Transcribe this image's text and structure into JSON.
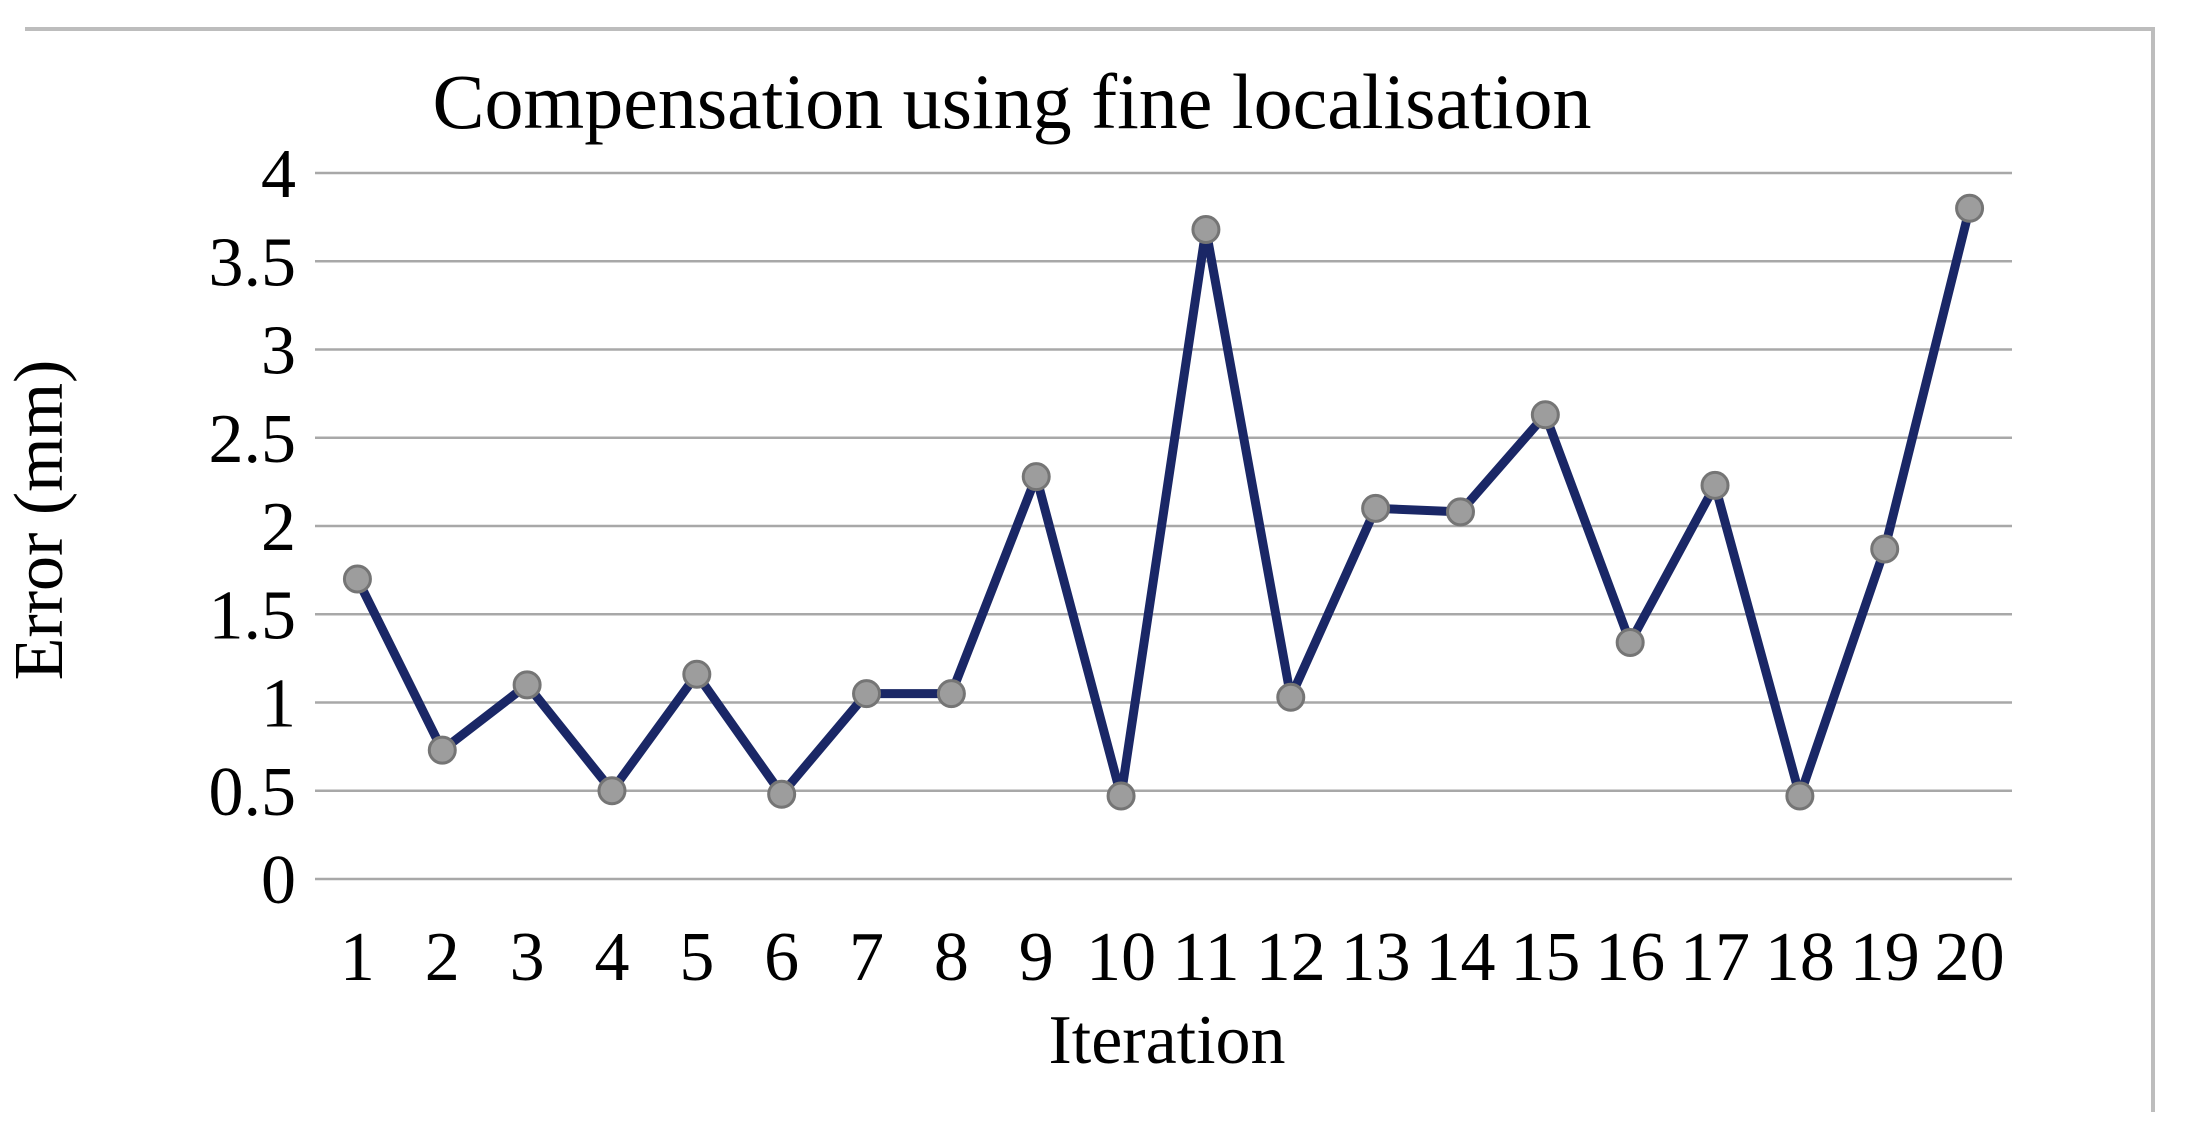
{
  "chart_data": {
    "type": "line",
    "title": "Compensation using fine localisation",
    "xlabel": "Iteration",
    "ylabel": "Error (mm)",
    "x": [
      1,
      2,
      3,
      4,
      5,
      6,
      7,
      8,
      9,
      10,
      11,
      12,
      13,
      14,
      15,
      16,
      17,
      18,
      19,
      20
    ],
    "values": [
      1.7,
      0.73,
      1.1,
      0.5,
      1.16,
      0.48,
      1.05,
      1.05,
      2.28,
      0.47,
      3.68,
      1.03,
      2.1,
      2.08,
      2.63,
      1.34,
      2.23,
      0.47,
      1.87,
      3.8
    ],
    "ylim": [
      0,
      4
    ],
    "yticks": [
      0,
      0.5,
      1,
      1.5,
      2,
      2.5,
      3,
      3.5,
      4
    ],
    "grid": "horizontal",
    "legend": "none",
    "series_name": "Error (mm) vs Iteration",
    "colors": {
      "line": "#1a2766",
      "marker_fill": "#9d9d9d",
      "marker_stroke": "#757575",
      "gridline": "#a8a8a8",
      "frame": "#bdbdbd",
      "text": "#000000",
      "background": "#ffffff"
    }
  }
}
